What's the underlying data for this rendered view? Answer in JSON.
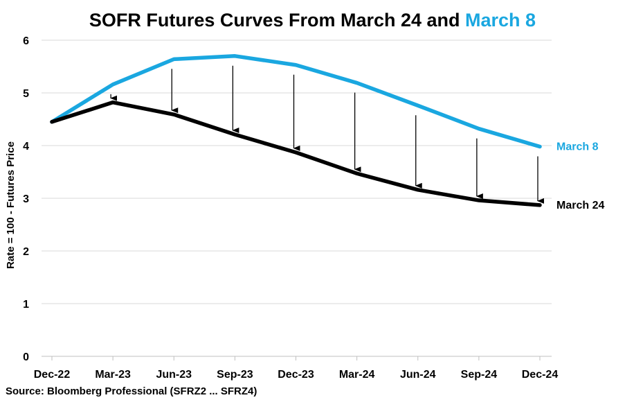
{
  "title_prefix": "SOFR Futures Curves From March 24 and ",
  "title_highlight": "March 8",
  "source": "Source: Bloomberg Professional  (SFRZ2 ... SFRZ4)",
  "chart_data": {
    "type": "line",
    "title": "SOFR Futures Curves From March 24 and March 8",
    "ylabel": "Rate = 100 - Futures Price",
    "xlabel": "",
    "categories": [
      "Dec-22",
      "Mar-23",
      "Jun-23",
      "Sep-23",
      "Dec-23",
      "Mar-24",
      "Jun-24",
      "Sep-24",
      "Dec-24"
    ],
    "ylim": [
      0,
      6
    ],
    "yticks": [
      0,
      1,
      2,
      3,
      4,
      5,
      6
    ],
    "grid": true,
    "series": [
      {
        "name": "March 8",
        "color": "#1aa7e0",
        "values": [
          4.45,
          5.16,
          5.64,
          5.7,
          5.53,
          5.19,
          4.76,
          4.32,
          3.98
        ]
      },
      {
        "name": "March 24",
        "color": "#000000",
        "values": [
          4.45,
          4.82,
          4.59,
          4.21,
          3.87,
          3.47,
          3.16,
          2.96,
          2.87
        ]
      }
    ],
    "annotations": "Downward arrows from the March 8 curve to the March 24 curve at each contract month"
  }
}
